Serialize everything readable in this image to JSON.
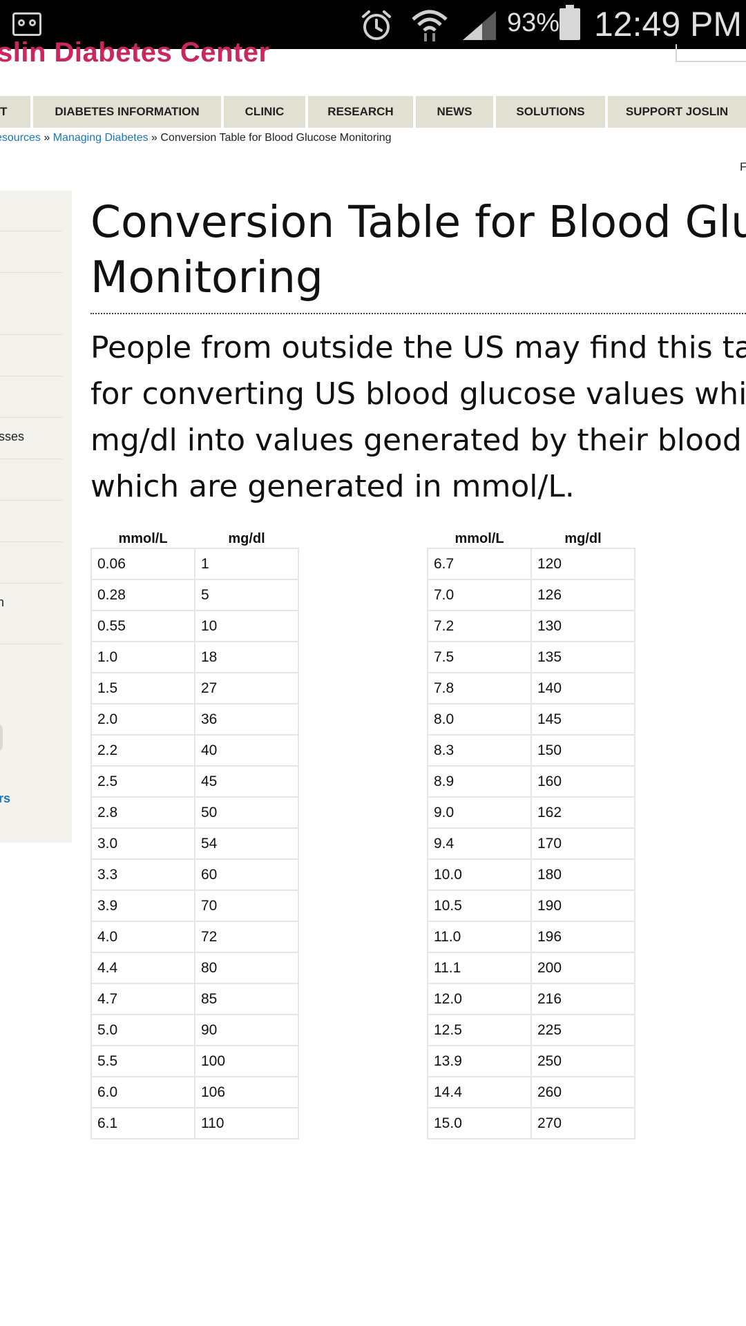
{
  "status_bar": {
    "icons": [
      "voicemail-icon",
      "alarm-icon",
      "wifi-icon",
      "signal-icon",
      "battery-icon"
    ],
    "battery": "93%",
    "time": "12:49 PM"
  },
  "site": {
    "logo": "slin Diabetes Center",
    "logo_color": "#c8285a",
    "link_color": "#1a76b8",
    "nav_bg": "#e2e0d2"
  },
  "nav": [
    "T",
    "DIABETES INFORMATION",
    "CLINIC",
    "RESEARCH",
    "NEWS",
    "SOLUTIONS",
    "SUPPORT JOSLIN"
  ],
  "breadcrumb": {
    "crumb1": "esources",
    "sep1": " » ",
    "crumb2": "Managing Diabetes",
    "sep2": " » ",
    "current": "Conversion Table for Blood Glucose Monitoring"
  },
  "edge_text": "F",
  "sidebar": {
    "item_sses": "sses",
    "item_n": "n",
    "item_rs": "rs"
  },
  "main": {
    "title": "Conversion Table for Blood Gluc\nMonitoring",
    "intro": "People from outside the US may find this table\nfor converting US blood glucose values which\nmg/dl into values generated by their blood glu\nwhich are generated in mmol/L."
  },
  "table_headers": [
    "mmol/L",
    "mg/dl"
  ],
  "left_table": [
    [
      "0.06",
      "1"
    ],
    [
      "0.28",
      "5"
    ],
    [
      "0.55",
      "10"
    ],
    [
      "1.0",
      "18"
    ],
    [
      "1.5",
      "27"
    ],
    [
      "2.0",
      "36"
    ],
    [
      "2.2",
      "40"
    ],
    [
      "2.5",
      "45"
    ],
    [
      "2.8",
      "50"
    ],
    [
      "3.0",
      "54"
    ],
    [
      "3.3",
      "60"
    ],
    [
      "3.9",
      "70"
    ],
    [
      "4.0",
      "72"
    ],
    [
      "4.4",
      "80"
    ],
    [
      "4.7",
      "85"
    ],
    [
      "5.0",
      "90"
    ],
    [
      "5.5",
      "100"
    ],
    [
      "6.0",
      "106"
    ],
    [
      "6.1",
      "110"
    ]
  ],
  "right_table": [
    [
      "6.7",
      "120"
    ],
    [
      "7.0",
      "126"
    ],
    [
      "7.2",
      "130"
    ],
    [
      "7.5",
      "135"
    ],
    [
      "7.8",
      "140"
    ],
    [
      "8.0",
      "145"
    ],
    [
      "8.3",
      "150"
    ],
    [
      "8.9",
      "160"
    ],
    [
      "9.0",
      "162"
    ],
    [
      "9.4",
      "170"
    ],
    [
      "10.0",
      "180"
    ],
    [
      "10.5",
      "190"
    ],
    [
      "11.0",
      "196"
    ],
    [
      "11.1",
      "200"
    ],
    [
      "12.0",
      "216"
    ],
    [
      "12.5",
      "225"
    ],
    [
      "13.9",
      "250"
    ],
    [
      "14.4",
      "260"
    ],
    [
      "15.0",
      "270"
    ]
  ]
}
